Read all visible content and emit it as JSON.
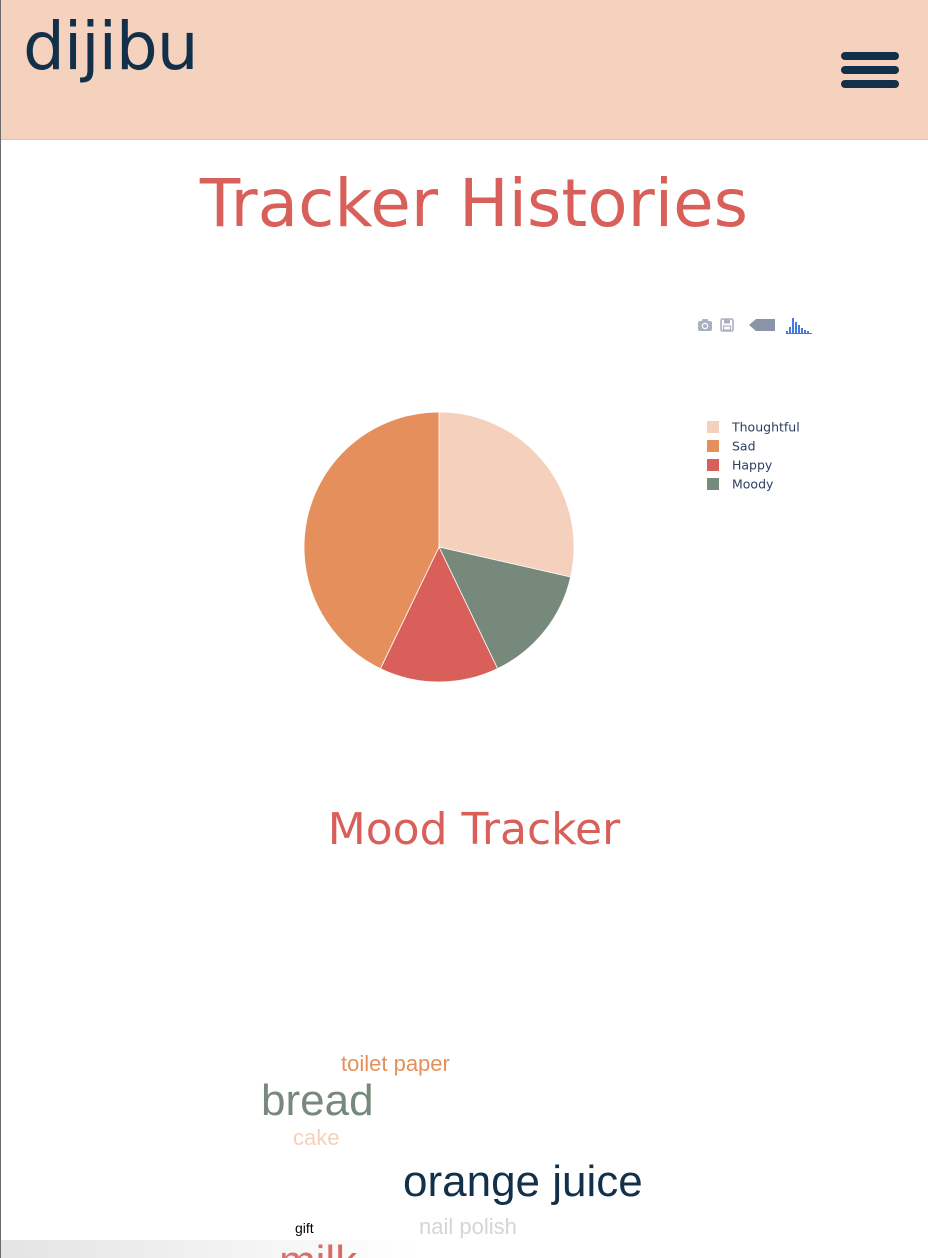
{
  "navbar": {
    "brand": "dijibu",
    "menu_icon": "hamburger-menu-icon",
    "background": "#f5d2be",
    "brand_color": "#123049"
  },
  "page": {
    "title": "Tracker Histories",
    "title_color": "#d9605a"
  },
  "modebar": {
    "icons": [
      "camera-icon",
      "save-icon",
      "tag-icon",
      "plotly-logo-icon"
    ]
  },
  "chart_data": {
    "type": "pie",
    "title": "",
    "labels": [
      "Thoughtful",
      "Sad",
      "Happy",
      "Moody"
    ],
    "values": [
      4,
      6,
      2,
      2
    ],
    "percent": [
      28.6,
      42.9,
      14.3,
      14.3
    ],
    "colors": [
      "#f5d0bc",
      "#e5905c",
      "#d9605a",
      "#76897a"
    ],
    "slice_order": [
      "Thoughtful",
      "Moody",
      "Happy",
      "Sad"
    ],
    "direction": "clockwise",
    "legend": [
      "Thoughtful",
      "Sad",
      "Happy",
      "Moody"
    ],
    "legend_position": "top-right"
  },
  "section": {
    "title": "Mood Tracker"
  },
  "word_cloud": {
    "words": [
      {
        "text": "toilet paper",
        "color": "#e5905c"
      },
      {
        "text": "bread",
        "color": "#76897a"
      },
      {
        "text": "cake",
        "color": "#f5d0bc"
      },
      {
        "text": "orange juice",
        "color": "#123049"
      },
      {
        "text": "gift",
        "color": "#000000"
      },
      {
        "text": "nail polish",
        "color": "#d5d5d5"
      },
      {
        "text": "milk",
        "color": "#d9605a"
      }
    ]
  }
}
